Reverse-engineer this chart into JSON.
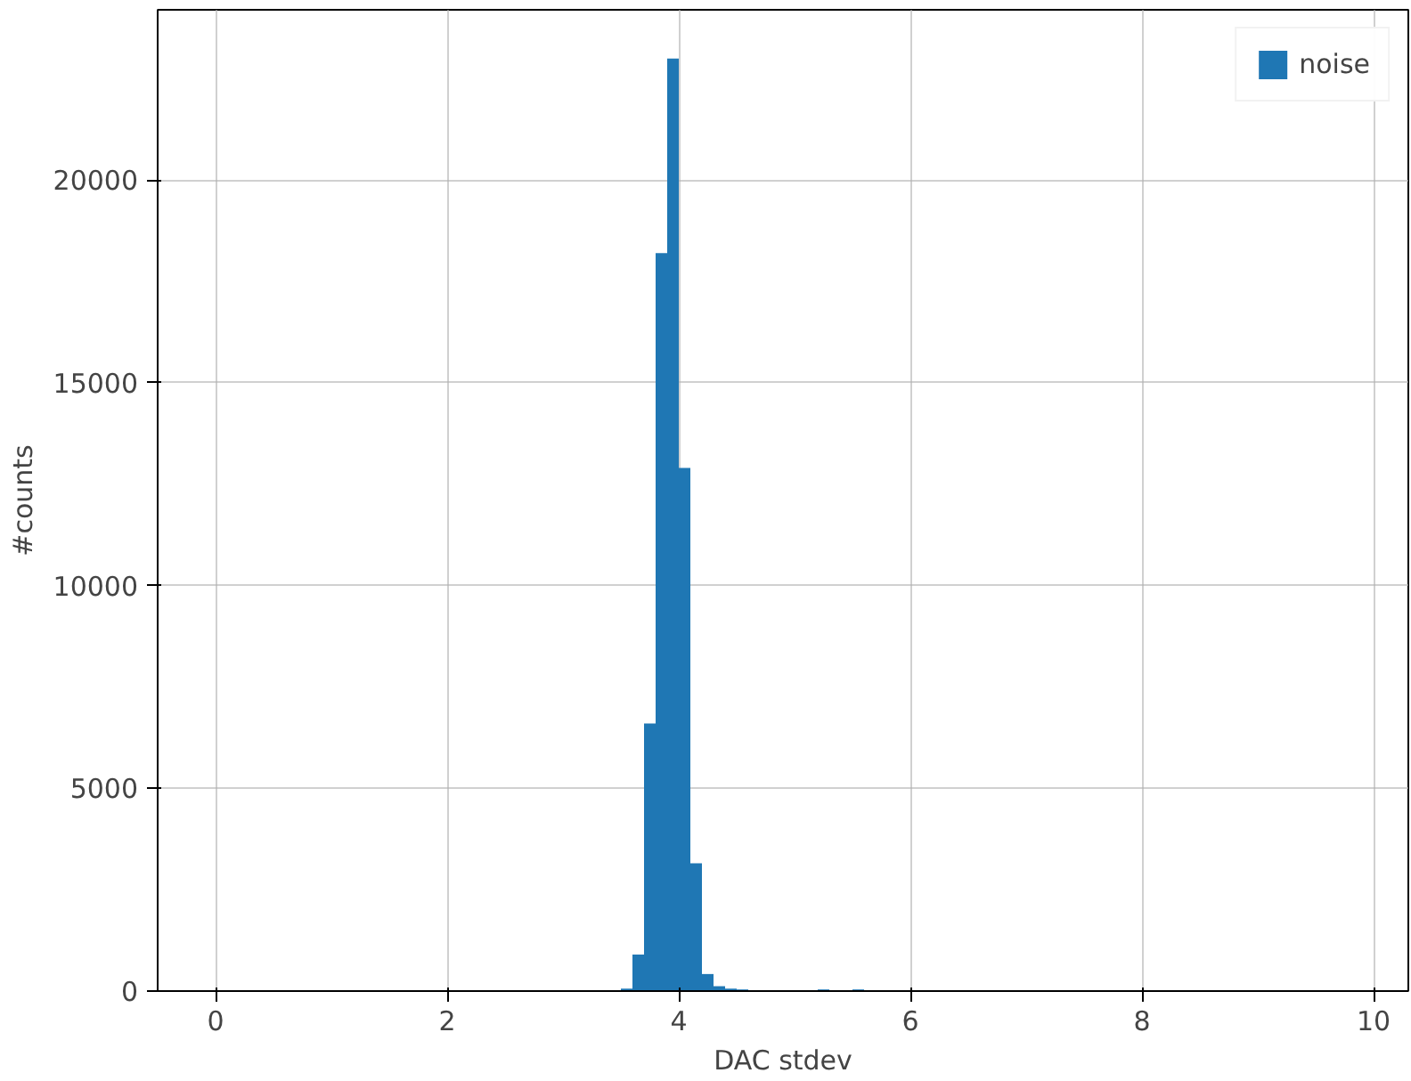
{
  "chart_data": {
    "type": "histogram",
    "xlabel": "DAC stdev",
    "ylabel": "#counts",
    "bins": [
      3.4,
      3.5,
      3.6,
      3.7,
      3.8,
      3.9,
      4.0,
      4.1,
      4.2,
      4.3,
      4.4,
      4.5,
      4.6,
      4.7,
      4.8,
      4.9,
      5.0,
      5.1,
      5.2,
      5.3,
      5.4,
      5.5,
      5.6,
      5.7
    ],
    "series": [
      {
        "name": "noise",
        "color": "#1f77b4",
        "values": [
          20,
          60,
          900,
          6600,
          18200,
          23000,
          12900,
          3150,
          420,
          120,
          60,
          40,
          null,
          null,
          20,
          20,
          20,
          20,
          40,
          0,
          0,
          40,
          0
        ]
      }
    ],
    "xlim": [
      -0.5,
      10.3
    ],
    "ylim": [
      0,
      24200
    ],
    "xticks": [
      0,
      2,
      4,
      6,
      8,
      10
    ],
    "yticks": [
      0,
      5000,
      10000,
      15000,
      20000
    ],
    "grid": true,
    "legend": "top right"
  }
}
